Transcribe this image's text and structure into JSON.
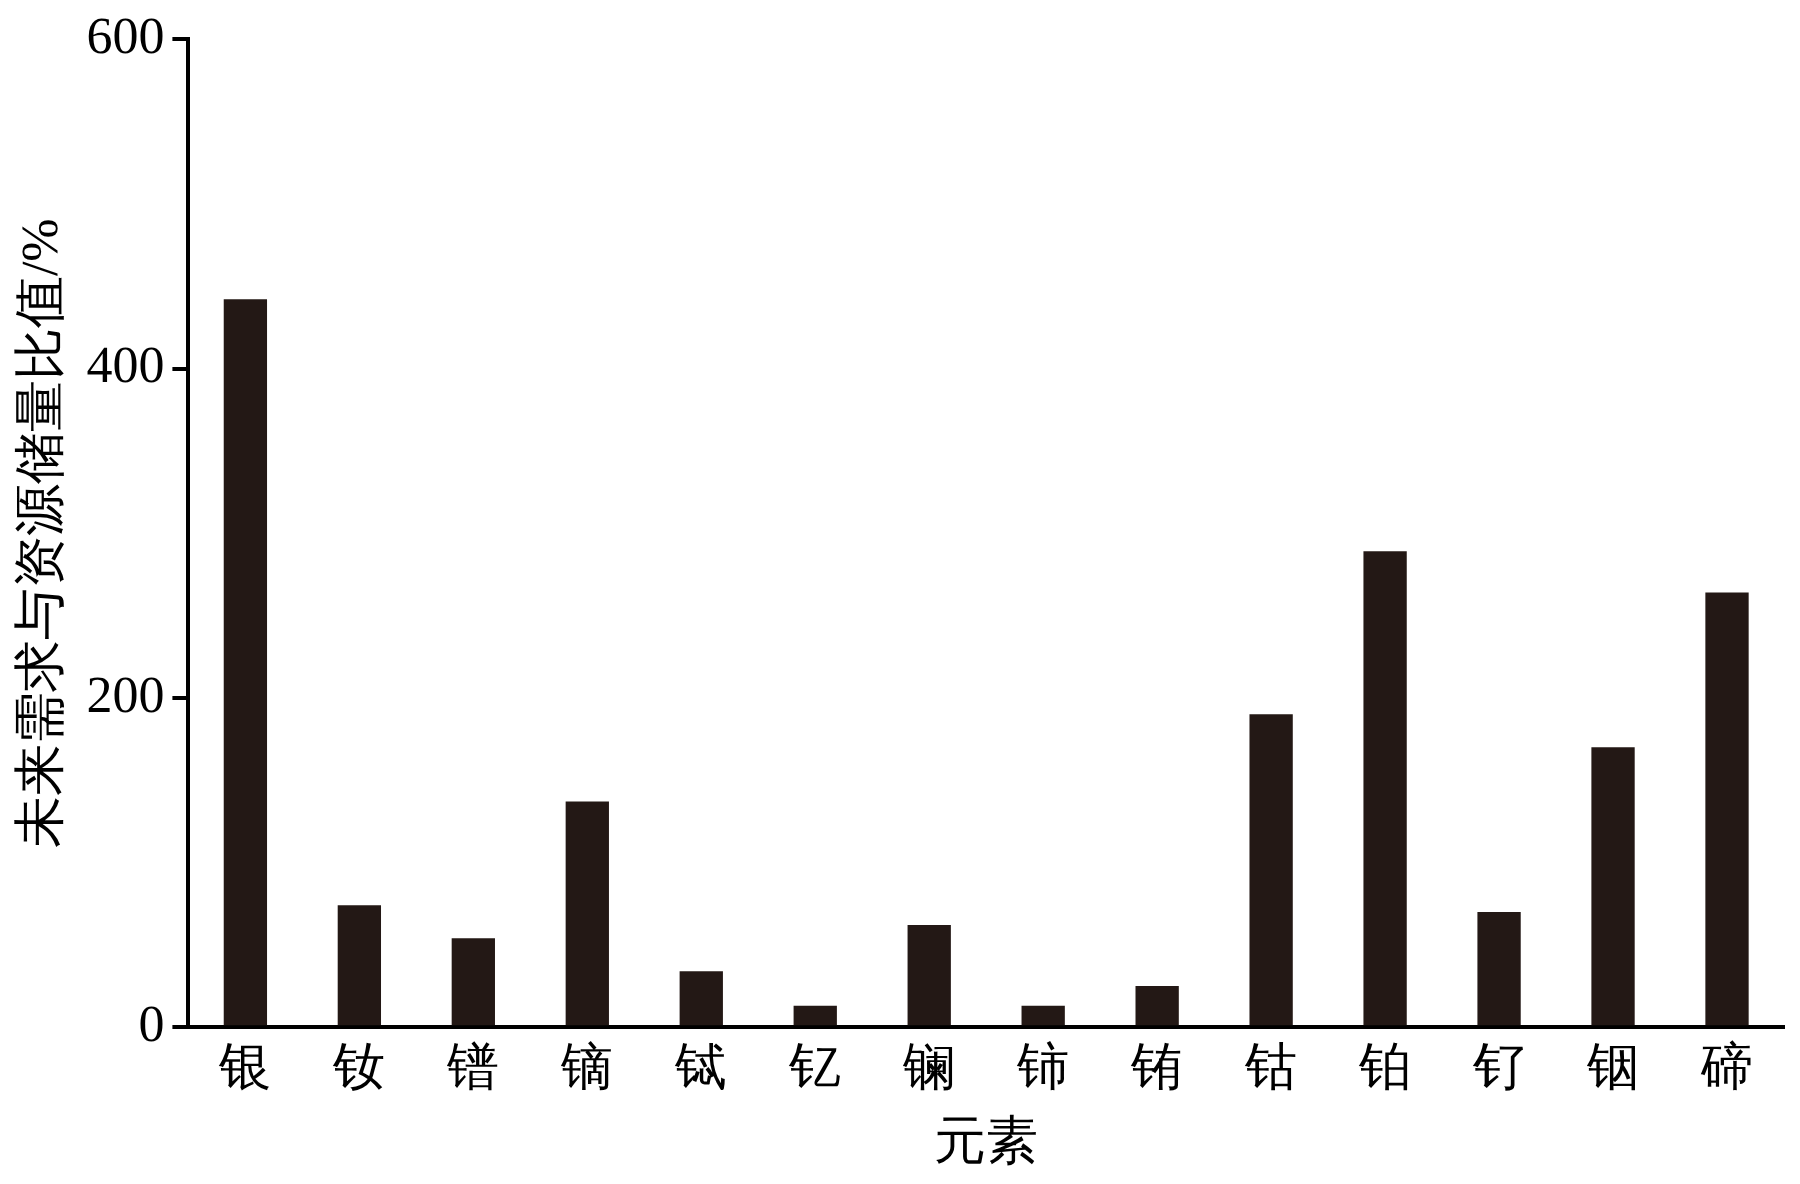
{
  "chart_data": {
    "type": "bar",
    "xlabel": "元素",
    "ylabel": "未来需求与资源储量比值/%",
    "categories": [
      "银",
      "钕",
      "镨",
      "镝",
      "铽",
      "钇",
      "镧",
      "铈",
      "铕",
      "钴",
      "铂",
      "钌",
      "铟",
      "碲"
    ],
    "values": [
      442,
      74,
      54,
      137,
      34,
      13,
      62,
      13,
      25,
      190,
      289,
      70,
      170,
      264
    ],
    "color": "#231815",
    "ylim": [
      0,
      600
    ],
    "yticks": [
      0,
      200,
      400,
      600
    ],
    "grid": false,
    "legend": false
  }
}
